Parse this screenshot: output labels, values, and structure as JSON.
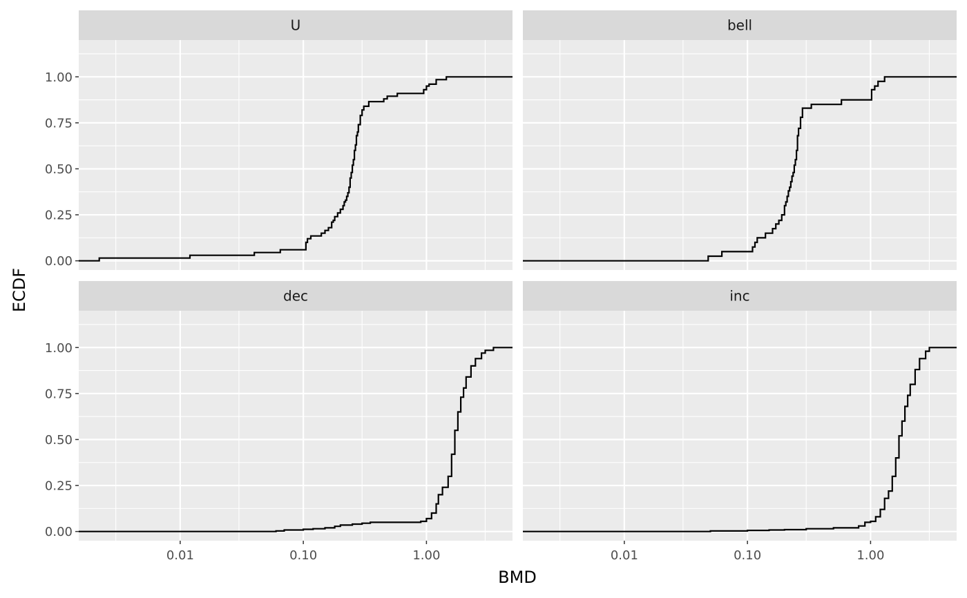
{
  "chart_data": {
    "type": "line",
    "step": true,
    "xlabel": "BMD",
    "ylabel": "ECDF",
    "x_scale": "log10",
    "xlim": [
      0.0015,
      5.0
    ],
    "ylim": [
      -0.05,
      1.2
    ],
    "x_ticks": [
      0.01,
      0.1,
      1.0
    ],
    "x_tick_labels": [
      "0.01",
      "0.10",
      "1.00"
    ],
    "y_ticks": [
      0,
      0.25,
      0.5,
      0.75,
      1.0
    ],
    "y_tick_labels": [
      "0.00",
      "0.25",
      "0.50",
      "0.75",
      "1.00"
    ],
    "grid": true,
    "colors": {
      "panel_bg": "#ebebeb",
      "strip_bg": "#d9d9d9",
      "grid": "#ffffff",
      "line": "#000000"
    },
    "facets": [
      {
        "name": "U",
        "x": [
          0.0015,
          0.0022,
          0.012,
          0.04,
          0.065,
          0.105,
          0.108,
          0.115,
          0.14,
          0.15,
          0.16,
          0.17,
          0.175,
          0.18,
          0.19,
          0.2,
          0.21,
          0.215,
          0.22,
          0.225,
          0.23,
          0.235,
          0.24,
          0.245,
          0.25,
          0.255,
          0.26,
          0.265,
          0.27,
          0.275,
          0.28,
          0.29,
          0.3,
          0.31,
          0.34,
          0.45,
          0.48,
          0.58,
          0.95,
          1.0,
          1.05,
          1.2,
          1.45,
          5.0
        ],
        "y": [
          0.0,
          0.015,
          0.03,
          0.045,
          0.06,
          0.1,
          0.12,
          0.135,
          0.15,
          0.165,
          0.18,
          0.21,
          0.22,
          0.24,
          0.26,
          0.28,
          0.3,
          0.32,
          0.33,
          0.35,
          0.37,
          0.4,
          0.45,
          0.48,
          0.52,
          0.55,
          0.6,
          0.63,
          0.68,
          0.7,
          0.74,
          0.79,
          0.82,
          0.84,
          0.865,
          0.88,
          0.895,
          0.91,
          0.93,
          0.95,
          0.96,
          0.985,
          1.0,
          1.0
        ]
      },
      {
        "name": "bell",
        "x": [
          0.0015,
          0.048,
          0.062,
          0.11,
          0.115,
          0.12,
          0.14,
          0.16,
          0.17,
          0.18,
          0.19,
          0.2,
          0.205,
          0.21,
          0.215,
          0.22,
          0.225,
          0.23,
          0.235,
          0.24,
          0.245,
          0.25,
          0.255,
          0.26,
          0.27,
          0.28,
          0.33,
          0.58,
          1.02,
          1.08,
          1.15,
          1.3,
          5.0
        ],
        "y": [
          0.0,
          0.025,
          0.05,
          0.075,
          0.1,
          0.125,
          0.15,
          0.175,
          0.2,
          0.22,
          0.25,
          0.3,
          0.32,
          0.35,
          0.38,
          0.4,
          0.43,
          0.46,
          0.48,
          0.52,
          0.55,
          0.6,
          0.68,
          0.72,
          0.78,
          0.83,
          0.85,
          0.875,
          0.93,
          0.95,
          0.975,
          1.0,
          1.0
        ]
      },
      {
        "name": "dec",
        "x": [
          0.0015,
          0.06,
          0.07,
          0.1,
          0.12,
          0.15,
          0.18,
          0.2,
          0.25,
          0.3,
          0.35,
          0.5,
          0.9,
          1.0,
          1.1,
          1.2,
          1.25,
          1.35,
          1.5,
          1.6,
          1.7,
          1.8,
          1.9,
          2.0,
          2.1,
          2.3,
          2.5,
          2.8,
          3.0,
          3.5,
          4.0,
          5.0
        ],
        "y": [
          0.0,
          0.003,
          0.008,
          0.012,
          0.015,
          0.02,
          0.028,
          0.035,
          0.04,
          0.045,
          0.05,
          0.05,
          0.055,
          0.07,
          0.1,
          0.15,
          0.2,
          0.24,
          0.3,
          0.42,
          0.55,
          0.65,
          0.73,
          0.78,
          0.84,
          0.9,
          0.94,
          0.97,
          0.985,
          1.0,
          1.0,
          1.0
        ]
      },
      {
        "name": "inc",
        "x": [
          0.0015,
          0.05,
          0.1,
          0.15,
          0.2,
          0.3,
          0.5,
          0.8,
          0.9,
          1.0,
          1.1,
          1.2,
          1.3,
          1.4,
          1.5,
          1.6,
          1.7,
          1.8,
          1.9,
          2.0,
          2.1,
          2.3,
          2.5,
          2.8,
          3.0,
          3.5,
          4.0,
          5.0
        ],
        "y": [
          0.0,
          0.003,
          0.006,
          0.008,
          0.01,
          0.015,
          0.02,
          0.03,
          0.05,
          0.055,
          0.08,
          0.12,
          0.18,
          0.22,
          0.3,
          0.4,
          0.52,
          0.6,
          0.68,
          0.74,
          0.8,
          0.88,
          0.94,
          0.98,
          1.0,
          1.0,
          1.0,
          1.0
        ]
      }
    ]
  }
}
